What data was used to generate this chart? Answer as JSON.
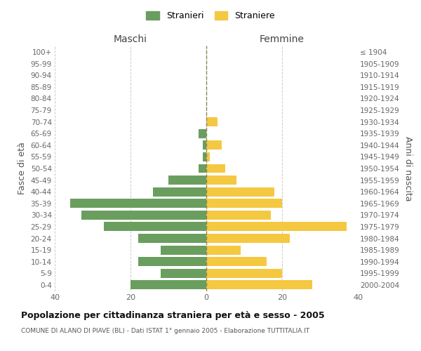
{
  "age_groups": [
    "0-4",
    "5-9",
    "10-14",
    "15-19",
    "20-24",
    "25-29",
    "30-34",
    "35-39",
    "40-44",
    "45-49",
    "50-54",
    "55-59",
    "60-64",
    "65-69",
    "70-74",
    "75-79",
    "80-84",
    "85-89",
    "90-94",
    "95-99",
    "100+"
  ],
  "birth_years": [
    "2000-2004",
    "1995-1999",
    "1990-1994",
    "1985-1989",
    "1980-1984",
    "1975-1979",
    "1970-1974",
    "1965-1969",
    "1960-1964",
    "1955-1959",
    "1950-1954",
    "1945-1949",
    "1940-1944",
    "1935-1939",
    "1930-1934",
    "1925-1929",
    "1920-1924",
    "1915-1919",
    "1910-1914",
    "1905-1909",
    "≤ 1904"
  ],
  "males": [
    20,
    12,
    18,
    12,
    18,
    27,
    33,
    36,
    14,
    10,
    2,
    1,
    1,
    2,
    0,
    0,
    0,
    0,
    0,
    0,
    0
  ],
  "females": [
    28,
    20,
    16,
    9,
    22,
    37,
    17,
    20,
    18,
    8,
    5,
    1,
    4,
    0,
    3,
    0,
    0,
    0,
    0,
    0,
    0
  ],
  "male_color": "#6a9e5f",
  "female_color": "#f5c842",
  "title": "Popolazione per cittadinanza straniera per età e sesso - 2005",
  "subtitle": "COMUNE DI ALANO DI PIAVE (BL) - Dati ISTAT 1° gennaio 2005 - Elaborazione TUTTITALIA.IT",
  "xlabel_left": "Maschi",
  "xlabel_right": "Femmine",
  "ylabel_left": "Fasce di età",
  "ylabel_right": "Anni di nascita",
  "legend_male": "Stranieri",
  "legend_female": "Straniere",
  "xlim": 40,
  "background_color": "#ffffff",
  "grid_color": "#cccccc"
}
